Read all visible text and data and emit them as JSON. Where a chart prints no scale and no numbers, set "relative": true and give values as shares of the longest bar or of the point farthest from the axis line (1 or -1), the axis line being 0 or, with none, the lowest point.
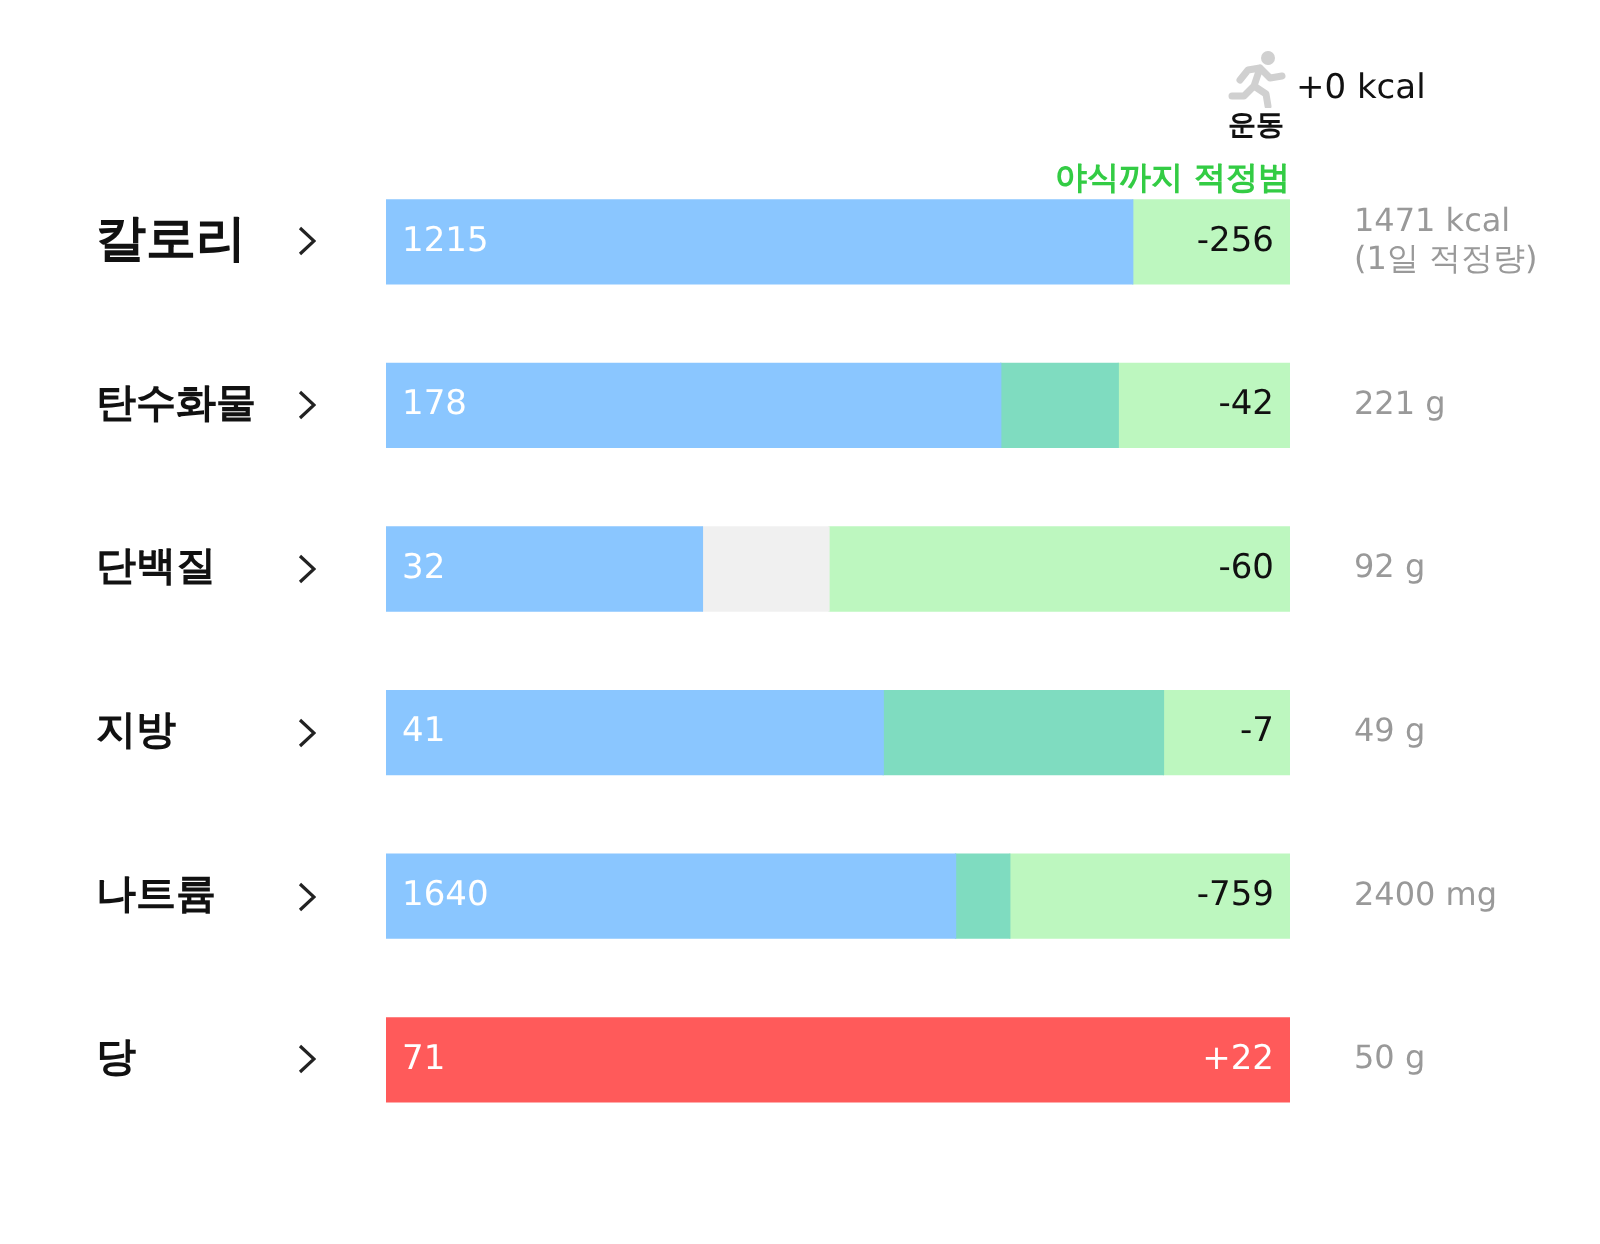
{
  "chart_data": {
    "type": "bar",
    "orientation": "horizontal",
    "stacked": true,
    "relative": true,
    "grid": false,
    "legend": false,
    "categories": [
      "칼로리",
      "탄수화물",
      "단백질",
      "지방",
      "나트륨",
      "당"
    ],
    "y2_categories": [
      "1471 kcal\n(1일 적정량)",
      "221 g",
      "92 g",
      "49 g",
      "2400 mg",
      "50 g"
    ],
    "series": [
      {
        "color": "#8ac6ff",
        "values": [
          0.826,
          0.68,
          0.35,
          0.55,
          0.63,
          null
        ]
      },
      {
        "color": "#7fdcc0",
        "values": [
          null,
          0.13,
          null,
          0.31,
          0.06,
          null
        ]
      },
      {
        "color": "#f0f0f0",
        "values": [
          null,
          null,
          0.14,
          null,
          null,
          null
        ]
      },
      {
        "color": "#bdf7bf",
        "values": [
          0.174,
          0.19,
          0.51,
          0.14,
          0.31,
          null
        ]
      },
      {
        "color": "#ff5a5a",
        "values": [
          null,
          null,
          null,
          null,
          null,
          1
        ]
      }
    ],
    "annotations": [
      "+0 kcal",
      "운동",
      "야식까지 적정범",
      "1215",
      "-256",
      "178",
      "-42",
      "32",
      "-60",
      "41",
      "-7",
      "1640",
      "-759",
      "71",
      "+22"
    ]
  }
}
